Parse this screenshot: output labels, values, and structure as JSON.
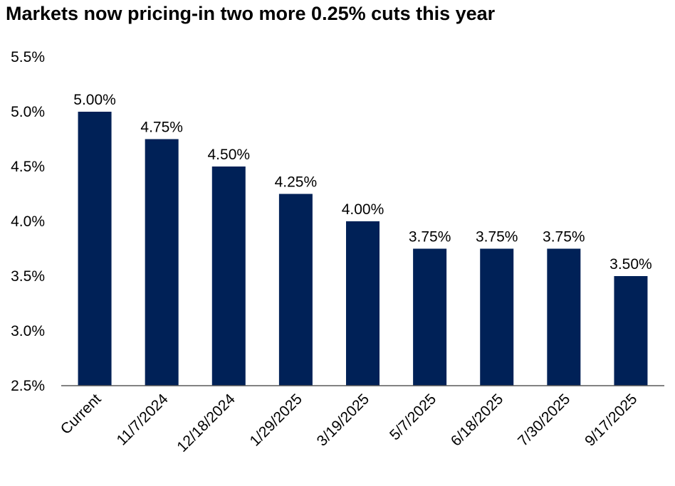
{
  "chart_data": {
    "type": "bar",
    "title": "Markets now pricing-in two more 0.25% cuts this year",
    "categories": [
      "Current",
      "11/7/2024",
      "12/18/2024",
      "1/29/2025",
      "3/19/2025",
      "5/7/2025",
      "6/18/2025",
      "7/30/2025",
      "9/17/2025"
    ],
    "values": [
      5.0,
      4.75,
      4.5,
      4.25,
      4.0,
      3.75,
      3.75,
      3.75,
      3.5
    ],
    "data_labels": [
      "5.00%",
      "4.75%",
      "4.50%",
      "4.25%",
      "4.00%",
      "3.75%",
      "3.75%",
      "3.75%",
      "3.50%"
    ],
    "yticks": [
      2.5,
      3.0,
      3.5,
      4.0,
      4.5,
      5.0,
      5.5
    ],
    "ytick_labels": [
      "2.5%",
      "3.0%",
      "3.5%",
      "4.0%",
      "4.5%",
      "5.0%",
      "5.5%"
    ],
    "ylim": [
      2.5,
      5.5
    ],
    "xlabel": "",
    "ylabel": "",
    "grid": false,
    "legend": "none",
    "bar_color": "#002157"
  }
}
